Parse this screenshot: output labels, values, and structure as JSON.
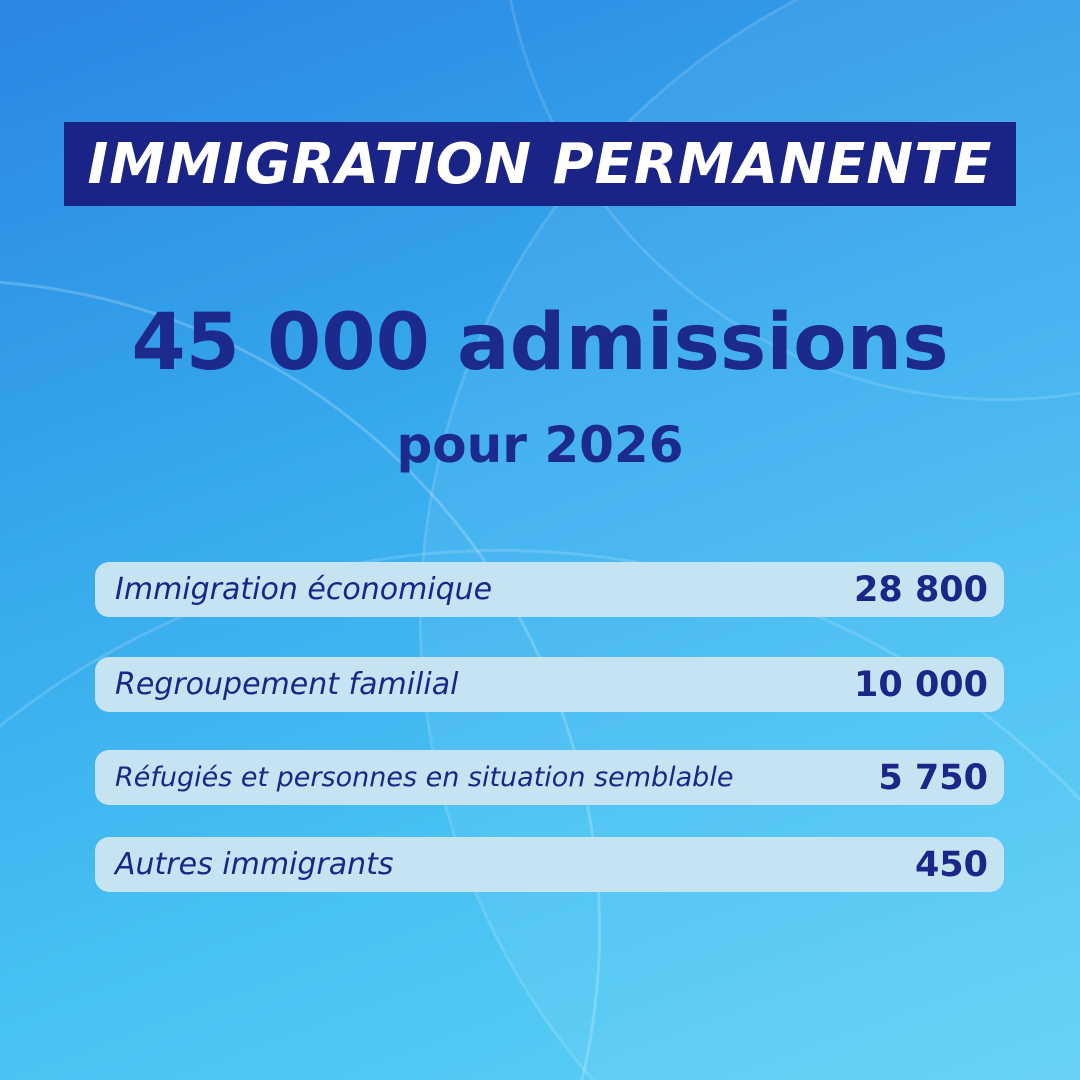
{
  "title": "IMMIGRATION PERMANENTE",
  "headline": "45 000 admissions",
  "subheadline": "pour 2026",
  "rows": [
    {
      "label": "Immigration économique",
      "value": "28 800"
    },
    {
      "label": "Regroupement familial",
      "value": "10 000"
    },
    {
      "label": "Réfugiés et personnes en situation semblable",
      "value": "5 750"
    },
    {
      "label": "Autres immigrants",
      "value": "450"
    }
  ],
  "colors": {
    "navy": "#1a2487",
    "row_bg": "#c6e3f1",
    "bg_top": "#2a86e3",
    "bg_bottom": "#5fd0f6"
  }
}
